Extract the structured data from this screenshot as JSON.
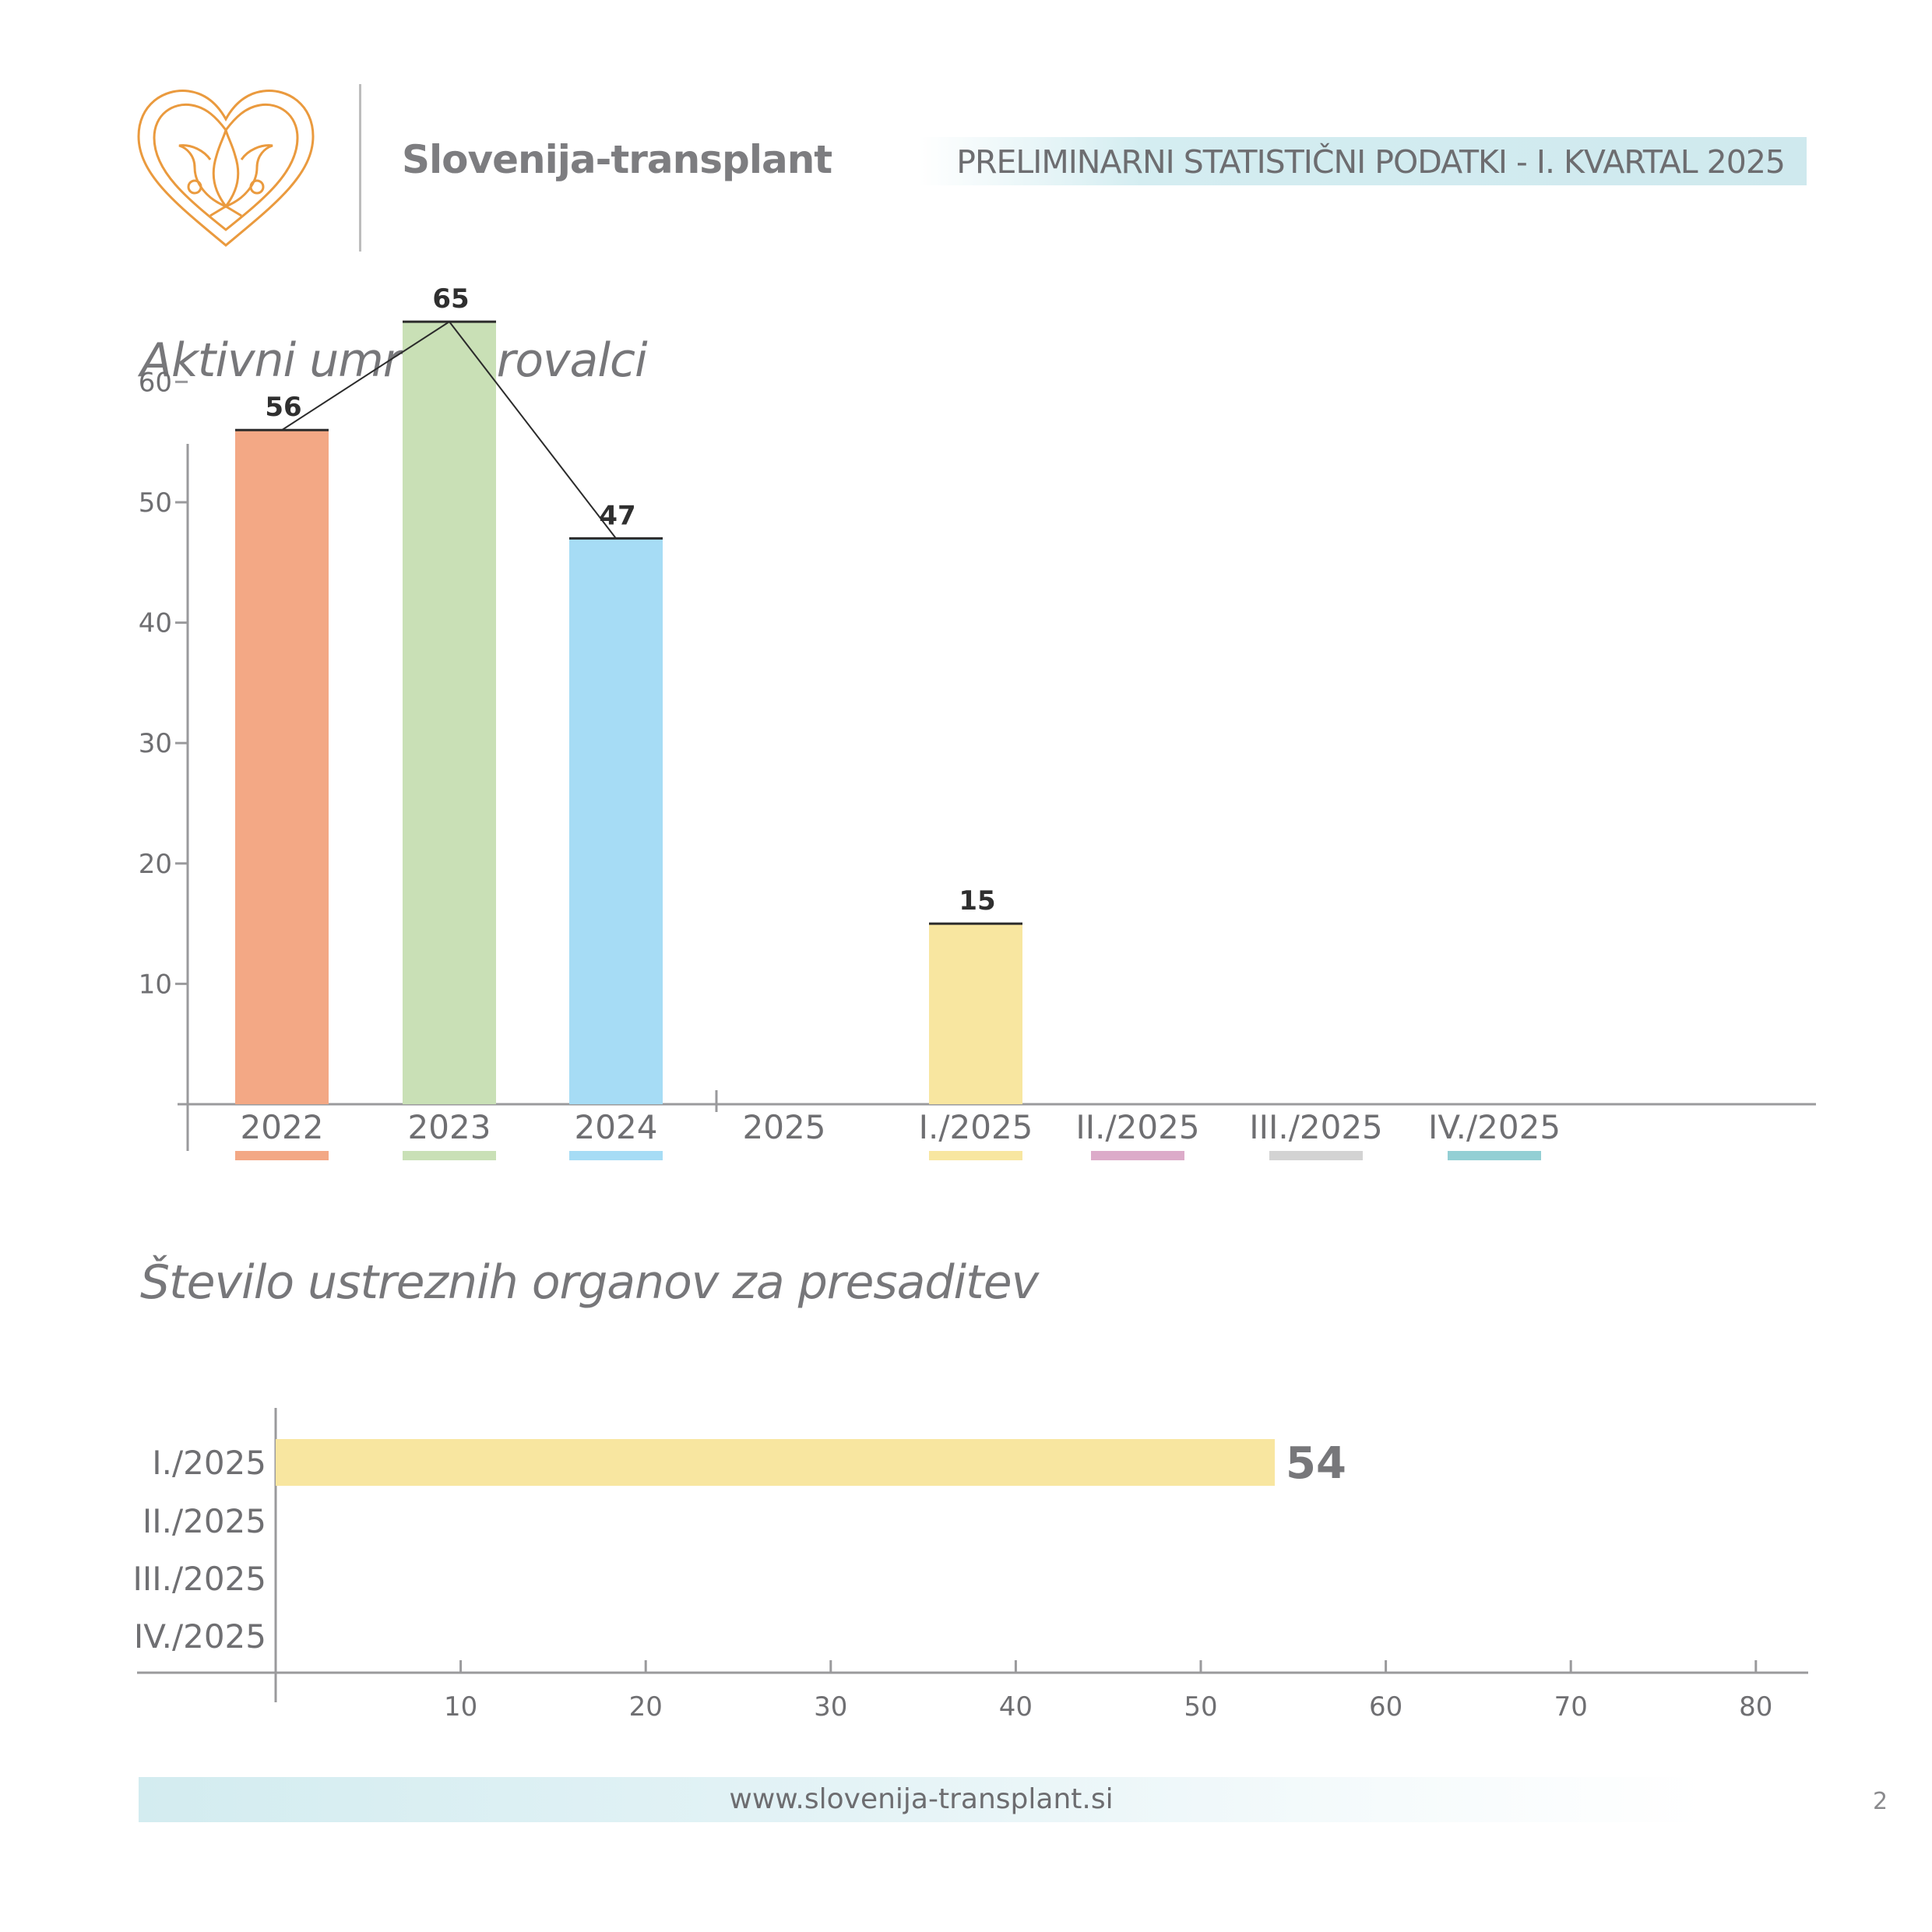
{
  "header": {
    "org_name": "Slovenija-transplant",
    "report_title": "PRELIMINARNI STATISTIČNI PODATKI - I. KVARTAL 2025",
    "logo_icon": "heart-lotus-icon",
    "logo_color": "#ea9a3e"
  },
  "chart_data": [
    {
      "type": "bar",
      "title": "Aktivni umrli darovalci",
      "categories": [
        "2022",
        "2023",
        "2024",
        "2025",
        "I./2025",
        "II./2025",
        "III./2025",
        "IV./2025"
      ],
      "values": [
        56,
        65,
        47,
        null,
        15,
        null,
        null,
        null
      ],
      "data_labels": [
        "56",
        "65",
        "47",
        "",
        "15",
        "",
        "",
        ""
      ],
      "colors": [
        "#f3a885",
        "#c9e0b6",
        "#a6dcf5",
        "",
        "#f8e6a0",
        "#dcabc9",
        "#d3d3d3",
        "#93cfd4"
      ],
      "trend_line": [
        "2022",
        "2023",
        "2024"
      ],
      "yticks": [
        "10",
        "20",
        "30",
        "40",
        "50",
        "60"
      ],
      "ylim": [
        0,
        70
      ],
      "grid": false,
      "legend": "color swatches under category labels"
    },
    {
      "type": "bar",
      "orientation": "horizontal",
      "title": "Število ustreznih organov za presaditev",
      "categories": [
        "I./2025",
        "II./2025",
        "III./2025",
        "IV./2025"
      ],
      "values": [
        54,
        null,
        null,
        null
      ],
      "data_labels": [
        "54",
        "",
        "",
        ""
      ],
      "colors": [
        "#f8e6a0"
      ],
      "xticks": [
        "10",
        "20",
        "30",
        "40",
        "50",
        "60",
        "70",
        "80"
      ],
      "xlim": [
        0,
        80
      ],
      "grid": false
    }
  ],
  "footer": {
    "url": "www.slovenija-transplant.si",
    "page_number": "2"
  }
}
